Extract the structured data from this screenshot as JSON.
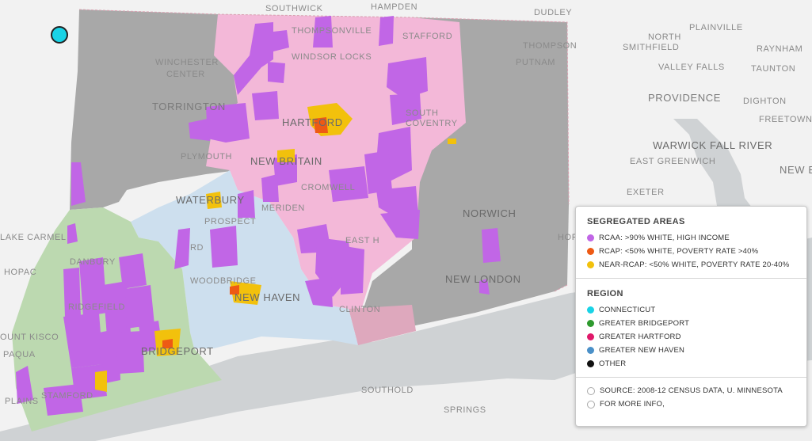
{
  "places": [
    {
      "key": "southwick",
      "label": "SOUTHWICK"
    },
    {
      "key": "hampden",
      "label": "HAMPDEN"
    },
    {
      "key": "dudley",
      "label": "DUDLEY"
    },
    {
      "key": "thompsonville",
      "label": "THOMPSONVILLE"
    },
    {
      "key": "stafford",
      "label": "STAFFORD"
    },
    {
      "key": "windsor_locks",
      "label": "WINDSOR LOCKS"
    },
    {
      "key": "putnam",
      "label": "PUTNAM"
    },
    {
      "key": "thompson",
      "label": "THOMPSON"
    },
    {
      "key": "plainville",
      "label": "PLAINVILLE"
    },
    {
      "key": "north",
      "label": "NORTH"
    },
    {
      "key": "smithfield",
      "label": "SMITHFIELD"
    },
    {
      "key": "raynham",
      "label": "RAYNHAM"
    },
    {
      "key": "valley_falls",
      "label": "VALLEY FALLS"
    },
    {
      "key": "taunton",
      "label": "TAUNTON"
    },
    {
      "key": "winchester",
      "label": "WINCHESTER"
    },
    {
      "key": "center",
      "label": "CENTER"
    },
    {
      "key": "torrington",
      "label": "TORRINGTON"
    },
    {
      "key": "providence",
      "label": "PROVIDENCE"
    },
    {
      "key": "dighton",
      "label": "DIGHTON"
    },
    {
      "key": "hartford",
      "label": "HARTFORD"
    },
    {
      "key": "south_coventry",
      "label": "SOUTH\nCOVENTRY"
    },
    {
      "key": "freetown",
      "label": "FREETOWN"
    },
    {
      "key": "warwick",
      "label": "WARWICK"
    },
    {
      "key": "fall_river",
      "label": "FALL RIVER"
    },
    {
      "key": "plymouth",
      "label": "PLYMOUTH"
    },
    {
      "key": "new_britain",
      "label": "NEW BRITAIN"
    },
    {
      "key": "east_greenwich",
      "label": "EAST GREENWICH"
    },
    {
      "key": "new_be",
      "label": "NEW BE"
    },
    {
      "key": "waterbury",
      "label": "WATERBURY"
    },
    {
      "key": "cromwell",
      "label": "CROMWELL"
    },
    {
      "key": "exeter",
      "label": "EXETER"
    },
    {
      "key": "meriden",
      "label": "MERIDEN"
    },
    {
      "key": "norwich",
      "label": "NORWICH"
    },
    {
      "key": "lake_carmel",
      "label": "LAKE CARMEL"
    },
    {
      "key": "prospect",
      "label": "PROSPECT"
    },
    {
      "key": "watertown",
      "label": "RD"
    },
    {
      "key": "east_haddam",
      "label": "EAST H"
    },
    {
      "key": "hopkinton",
      "label": "HOPK"
    },
    {
      "key": "danbury",
      "label": "DANBURY"
    },
    {
      "key": "mahopac",
      "label": "HOPAC"
    },
    {
      "key": "woodbridge",
      "label": "WOODBRIDGE"
    },
    {
      "key": "new_london",
      "label": "NEW LONDON"
    },
    {
      "key": "ridgefield",
      "label": "RIDGEFIELD"
    },
    {
      "key": "new_haven",
      "label": "NEW HAVEN"
    },
    {
      "key": "clinton",
      "label": "CLINTON"
    },
    {
      "key": "mount_kisco",
      "label": "OUNT KISCO"
    },
    {
      "key": "bridgeport",
      "label": "BRIDGEPORT"
    },
    {
      "key": "chappaqua",
      "label": "PAQUA"
    },
    {
      "key": "southold",
      "label": "SOUTHOLD"
    },
    {
      "key": "stamford",
      "label": "STAMFORD"
    },
    {
      "key": "white_plains",
      "label": "PLAINS"
    },
    {
      "key": "springs",
      "label": "SPRINGS"
    }
  ],
  "legend": {
    "segregated_title": "SEGREGATED AREAS",
    "segregated_items": [
      {
        "label": "RCAA: >90% WHITE, HIGH INCOME",
        "color": "#c166e6"
      },
      {
        "label": "RCAP: <50% WHITE, POVERTY RATE >40%",
        "color": "#ee5a14"
      },
      {
        "label": "NEAR-RCAP: <50% WHITE, POVERTY RATE 20-40%",
        "color": "#f2c10c"
      }
    ],
    "region_title": "REGION",
    "region_items": [
      {
        "label": "CONNECTICUT",
        "color": "#19d3e6"
      },
      {
        "label": "GREATER BRIDGEPORT",
        "color": "#2e9a2e"
      },
      {
        "label": "GREATER HARTFORD",
        "color": "#e0196a"
      },
      {
        "label": "GREATER NEW HAVEN",
        "color": "#4a90c8"
      },
      {
        "label": "OTHER",
        "color": "#111111"
      }
    ],
    "source_label": "SOURCE: 2008-12 CENSUS DATA, U. MINNESOTA",
    "more_info_label": "FOR MORE INFO,"
  },
  "colors": {
    "land": "#f2f2f2",
    "water": "#cfd2d4",
    "other_region": "#a8a8a8",
    "hartford_region": "#f3b8d8",
    "new_haven_region": "#cddfee",
    "bridgeport_region": "#bcd9b0",
    "rcaa": "#c166e6",
    "rcap": "#ee5a14",
    "near_rcap": "#f2c10c"
  }
}
